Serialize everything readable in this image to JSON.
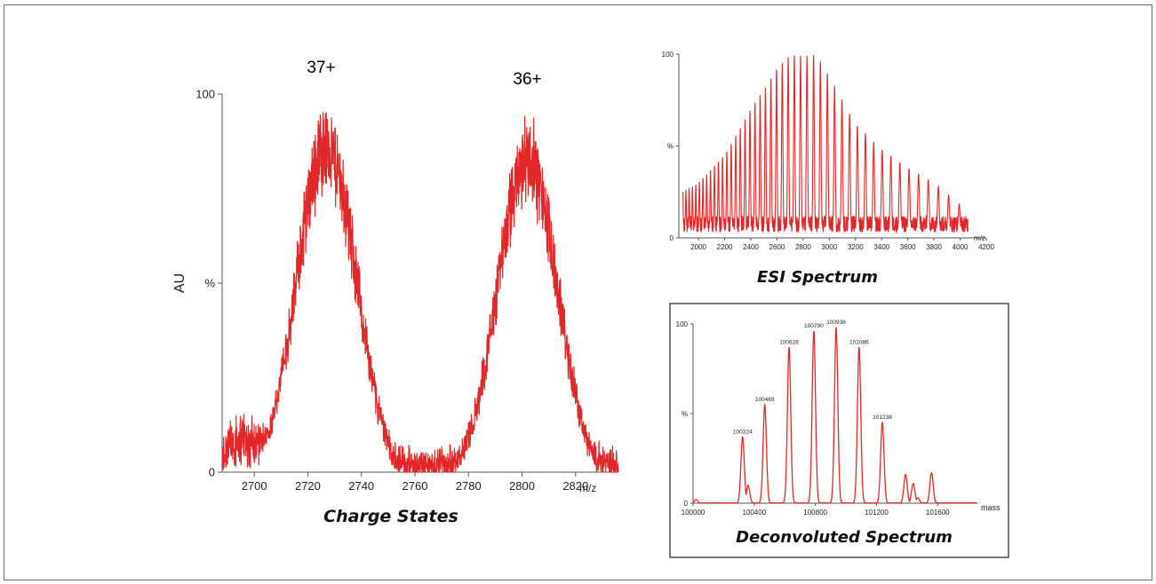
{
  "chart_data": [
    {
      "id": "charge_states",
      "type": "line",
      "caption": "Charge States",
      "xlabel": "m/z",
      "ylabel": "AU",
      "xlim": [
        2688,
        2836
      ],
      "ylim": [
        0,
        100
      ],
      "x_ticks": [
        "2700",
        "2720",
        "2740",
        "2760",
        "2780",
        "2800",
        "2820"
      ],
      "x_tick_values": [
        2700,
        2720,
        2740,
        2760,
        2780,
        2800,
        2820
      ],
      "y_ticks": [
        {
          "label": "100",
          "value": 100
        },
        {
          "label": "%",
          "value": 50
        },
        {
          "label": "0",
          "value": 0
        }
      ],
      "color": "#e0282a",
      "annotations": [
        {
          "text": "37+",
          "x": 2725,
          "y": 100
        },
        {
          "text": "36+",
          "x": 2802,
          "y": 97
        }
      ],
      "series": [
        {
          "peaks": [
            {
              "center": 2727,
              "height": 100,
              "width": 7
            },
            {
              "center": 2802,
              "height": 96,
              "width": 7
            }
          ],
          "noise_envelope": [
            {
              "x": 2688,
              "y": 10
            },
            {
              "x": 2690,
              "y": 14
            },
            {
              "x": 2695,
              "y": 18
            },
            {
              "x": 2700,
              "y": 16
            },
            {
              "x": 2705,
              "y": 14
            },
            {
              "x": 2710,
              "y": 18
            },
            {
              "x": 2764,
              "y": 6
            },
            {
              "x": 2775,
              "y": 8
            },
            {
              "x": 2826,
              "y": 10
            },
            {
              "x": 2836,
              "y": 7
            }
          ]
        }
      ]
    },
    {
      "id": "esi_spectrum",
      "type": "line",
      "caption": "ESI Spectrum",
      "xlabel": "m/z",
      "ylabel": "",
      "xlim": [
        1850,
        4200
      ],
      "ylim": [
        0,
        100
      ],
      "x_ticks": [
        "2000",
        "2200",
        "2400",
        "2600",
        "2800",
        "3000",
        "3200",
        "3400",
        "3600",
        "3800",
        "4000",
        "4200"
      ],
      "x_tick_values": [
        2000,
        2200,
        2400,
        2600,
        2800,
        3000,
        3200,
        3400,
        3600,
        3800,
        4000,
        4200
      ],
      "y_ticks": [
        {
          "label": "100",
          "value": 100
        },
        {
          "label": "%",
          "value": 50
        },
        {
          "label": "0",
          "value": 0
        }
      ],
      "color": "#e0282a",
      "series": [
        {
          "peak_envelope": [
            {
              "x": 1880,
              "y": 25
            },
            {
              "x": 2000,
              "y": 30
            },
            {
              "x": 2200,
              "y": 45
            },
            {
              "x": 2400,
              "y": 70
            },
            {
              "x": 2600,
              "y": 92
            },
            {
              "x": 2700,
              "y": 100
            },
            {
              "x": 2800,
              "y": 99
            },
            {
              "x": 2900,
              "y": 100
            },
            {
              "x": 3000,
              "y": 88
            },
            {
              "x": 3200,
              "y": 62
            },
            {
              "x": 3400,
              "y": 48
            },
            {
              "x": 3600,
              "y": 38
            },
            {
              "x": 3800,
              "y": 30
            },
            {
              "x": 4000,
              "y": 18
            },
            {
              "x": 4060,
              "y": 12
            }
          ],
          "baseline": 10
        }
      ]
    },
    {
      "id": "deconvoluted_spectrum",
      "type": "line",
      "caption": "Deconvoluted Spectrum",
      "xlabel": "mass",
      "ylabel": "",
      "xlim": [
        100000,
        101860
      ],
      "ylim": [
        0,
        100
      ],
      "x_ticks": [
        "100000",
        "100400",
        "100800",
        "101200",
        "101600"
      ],
      "x_tick_values": [
        100000,
        100400,
        100800,
        101200,
        101600
      ],
      "y_ticks": [
        {
          "label": "100",
          "value": 100
        },
        {
          "label": "%",
          "value": 50
        },
        {
          "label": "0",
          "value": 0
        }
      ],
      "color": "#e0282a",
      "series": [
        {
          "peaks": [
            {
              "x": 100324,
              "y": 37,
              "label": "100324"
            },
            {
              "x": 100469,
              "y": 55,
              "label": "100469"
            },
            {
              "x": 100628,
              "y": 87,
              "label": "100628"
            },
            {
              "x": 100790,
              "y": 96,
              "label": "100790"
            },
            {
              "x": 100936,
              "y": 98,
              "label": "100936"
            },
            {
              "x": 101086,
              "y": 87,
              "label": "101086"
            },
            {
              "x": 101238,
              "y": 45,
              "label": "101238"
            }
          ],
          "minor_peaks": [
            {
              "x": 100020,
              "y": 2
            },
            {
              "x": 100360,
              "y": 10
            },
            {
              "x": 101390,
              "y": 16
            },
            {
              "x": 101440,
              "y": 11
            },
            {
              "x": 101470,
              "y": 3
            },
            {
              "x": 101560,
              "y": 17
            }
          ]
        }
      ]
    }
  ]
}
